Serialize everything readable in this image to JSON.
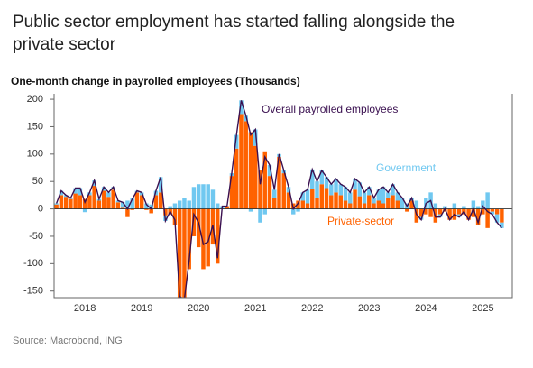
{
  "chart_data": {
    "type": "stacked_bar_line",
    "title": "Public sector employment has started falling alongside the private sector",
    "subtitle": "One-month change in payrolled employees (Thousands)",
    "source": "Source: Macrobond, ING",
    "categories": [
      null,
      null,
      null,
      null,
      null,
      null,
      "2018",
      null,
      null,
      null,
      null,
      null,
      null,
      null,
      null,
      null,
      null,
      null,
      "2019",
      null,
      null,
      null,
      null,
      null,
      null,
      null,
      null,
      null,
      null,
      null,
      "2020",
      null,
      null,
      null,
      null,
      null,
      null,
      null,
      null,
      null,
      null,
      null,
      "2021",
      null,
      null,
      null,
      null,
      null,
      null,
      null,
      null,
      null,
      null,
      null,
      "2022",
      null,
      null,
      null,
      null,
      null,
      null,
      null,
      null,
      null,
      null,
      null,
      "2023",
      null,
      null,
      null,
      null,
      null,
      null,
      null,
      null,
      null,
      null,
      null,
      "2024",
      null,
      null,
      null,
      null,
      null,
      null,
      null,
      null,
      null,
      null,
      null,
      "2025",
      null,
      null,
      null,
      null
    ],
    "series": [
      {
        "name": "Private-sector",
        "color": "#ff6200",
        "values": [
          8,
          25,
          22,
          18,
          28,
          25,
          18,
          25,
          42,
          15,
          33,
          22,
          35,
          12,
          2,
          -15,
          -2,
          30,
          25,
          -2,
          -8,
          25,
          30,
          -12,
          -10,
          -30,
          -175,
          -185,
          -110,
          -50,
          -70,
          -110,
          -105,
          -65,
          -100,
          0,
          5,
          60,
          110,
          173,
          160,
          140,
          115,
          70,
          105,
          60,
          20,
          95,
          65,
          30,
          10,
          15,
          15,
          10,
          37,
          20,
          45,
          38,
          25,
          30,
          25,
          15,
          10,
          35,
          23,
          10,
          25,
          10,
          15,
          10,
          20,
          25,
          15,
          0,
          -5,
          15,
          -25,
          -15,
          -10,
          -15,
          -25,
          -10,
          -5,
          -20,
          -20,
          -10,
          -10,
          -20,
          -15,
          -30,
          -10,
          -35,
          -5,
          -10,
          -25
        ]
      },
      {
        "name": "Government",
        "color": "#70c8f0",
        "values": [
          2,
          8,
          3,
          2,
          10,
          13,
          -6,
          5,
          10,
          3,
          7,
          8,
          5,
          3,
          10,
          15,
          20,
          3,
          5,
          10,
          8,
          8,
          28,
          -10,
          5,
          10,
          15,
          20,
          15,
          40,
          45,
          45,
          45,
          35,
          10,
          5,
          0,
          5,
          25,
          25,
          10,
          -5,
          30,
          -25,
          -10,
          20,
          15,
          5,
          5,
          10,
          -10,
          -5,
          15,
          25,
          35,
          30,
          25,
          20,
          20,
          25,
          20,
          25,
          20,
          20,
          25,
          20,
          15,
          10,
          20,
          30,
          10,
          20,
          15,
          20,
          10,
          5,
          15,
          -5,
          20,
          30,
          10,
          -5,
          5,
          0,
          10,
          -5,
          5,
          0,
          15,
          5,
          15,
          30,
          -5,
          -15,
          -10
        ]
      },
      {
        "name": "Overall payrolled employees",
        "color": "#3a1050",
        "kind": "line",
        "values": [
          10,
          33,
          25,
          20,
          38,
          38,
          12,
          30,
          52,
          18,
          40,
          30,
          40,
          15,
          12,
          0,
          18,
          33,
          30,
          8,
          0,
          33,
          58,
          -22,
          -5,
          -20,
          -160,
          -165,
          -95,
          -10,
          -25,
          -65,
          -60,
          -30,
          -90,
          5,
          5,
          65,
          135,
          198,
          170,
          135,
          145,
          45,
          95,
          80,
          35,
          100,
          70,
          40,
          0,
          10,
          30,
          35,
          72,
          50,
          70,
          58,
          45,
          55,
          45,
          40,
          30,
          55,
          48,
          30,
          40,
          20,
          35,
          40,
          30,
          45,
          30,
          20,
          5,
          20,
          -10,
          -20,
          10,
          15,
          -15,
          -15,
          0,
          -20,
          -10,
          -15,
          -5,
          -20,
          0,
          -25,
          5,
          -5,
          -10,
          -25,
          -35
        ]
      }
    ],
    "ylim": [
      -162,
      210
    ],
    "yticks": [
      -150,
      -100,
      -50,
      0,
      50,
      100,
      150,
      200
    ]
  }
}
